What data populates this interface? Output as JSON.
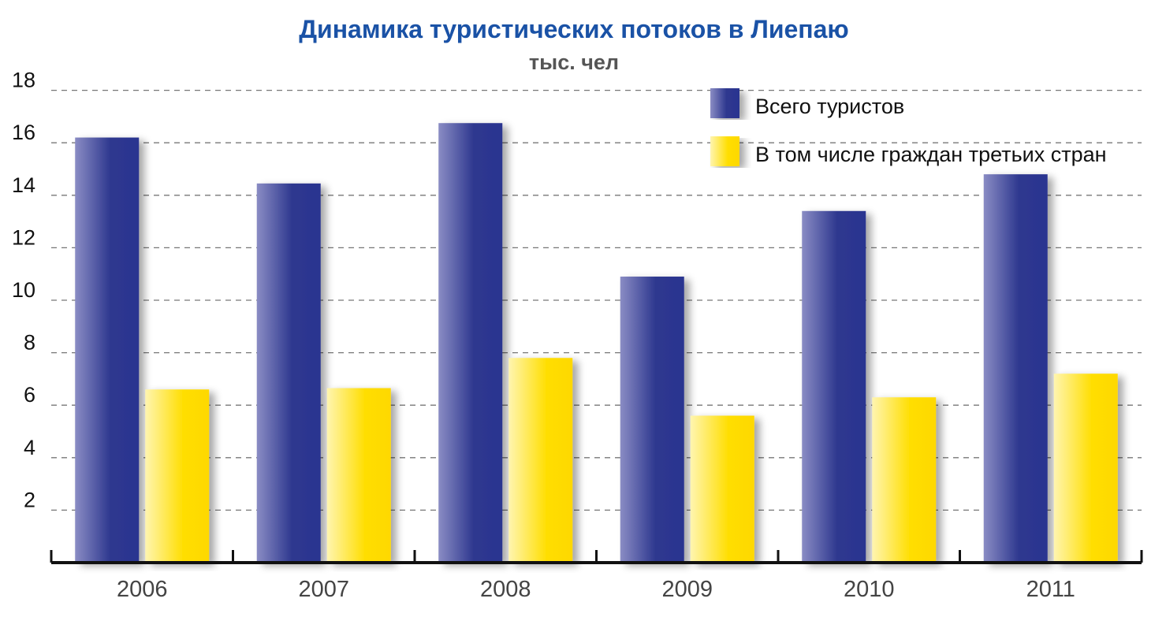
{
  "chart_data": {
    "type": "bar",
    "title": "Динамика туристических потоков в Лиепаю",
    "subtitle": "тыс. чел",
    "categories": [
      "2006",
      "2007",
      "2008",
      "2009",
      "2010",
      "2011"
    ],
    "series": [
      {
        "name": "Всего туристов",
        "values": [
          16.2,
          14.45,
          16.75,
          10.9,
          13.4,
          14.8
        ]
      },
      {
        "name": "В том числе граждан третьих стран",
        "values": [
          6.6,
          6.65,
          7.8,
          5.6,
          6.3,
          7.2
        ]
      }
    ],
    "y_ticks": [
      "2",
      "4",
      "6",
      "8",
      "10",
      "12",
      "14",
      "16",
      "18"
    ],
    "ylim": [
      0,
      18
    ],
    "grid": true,
    "legend_position": "top-right",
    "colors": {
      "title": "#1a52a6",
      "subtitle": "#555555",
      "series_1_dark": "#2e388f",
      "series_1_light": "#8a8cc4",
      "series_2_dark": "#ffde00",
      "series_2_light": "#fff5b0",
      "grid": "#777777",
      "axis": "#111111"
    }
  }
}
